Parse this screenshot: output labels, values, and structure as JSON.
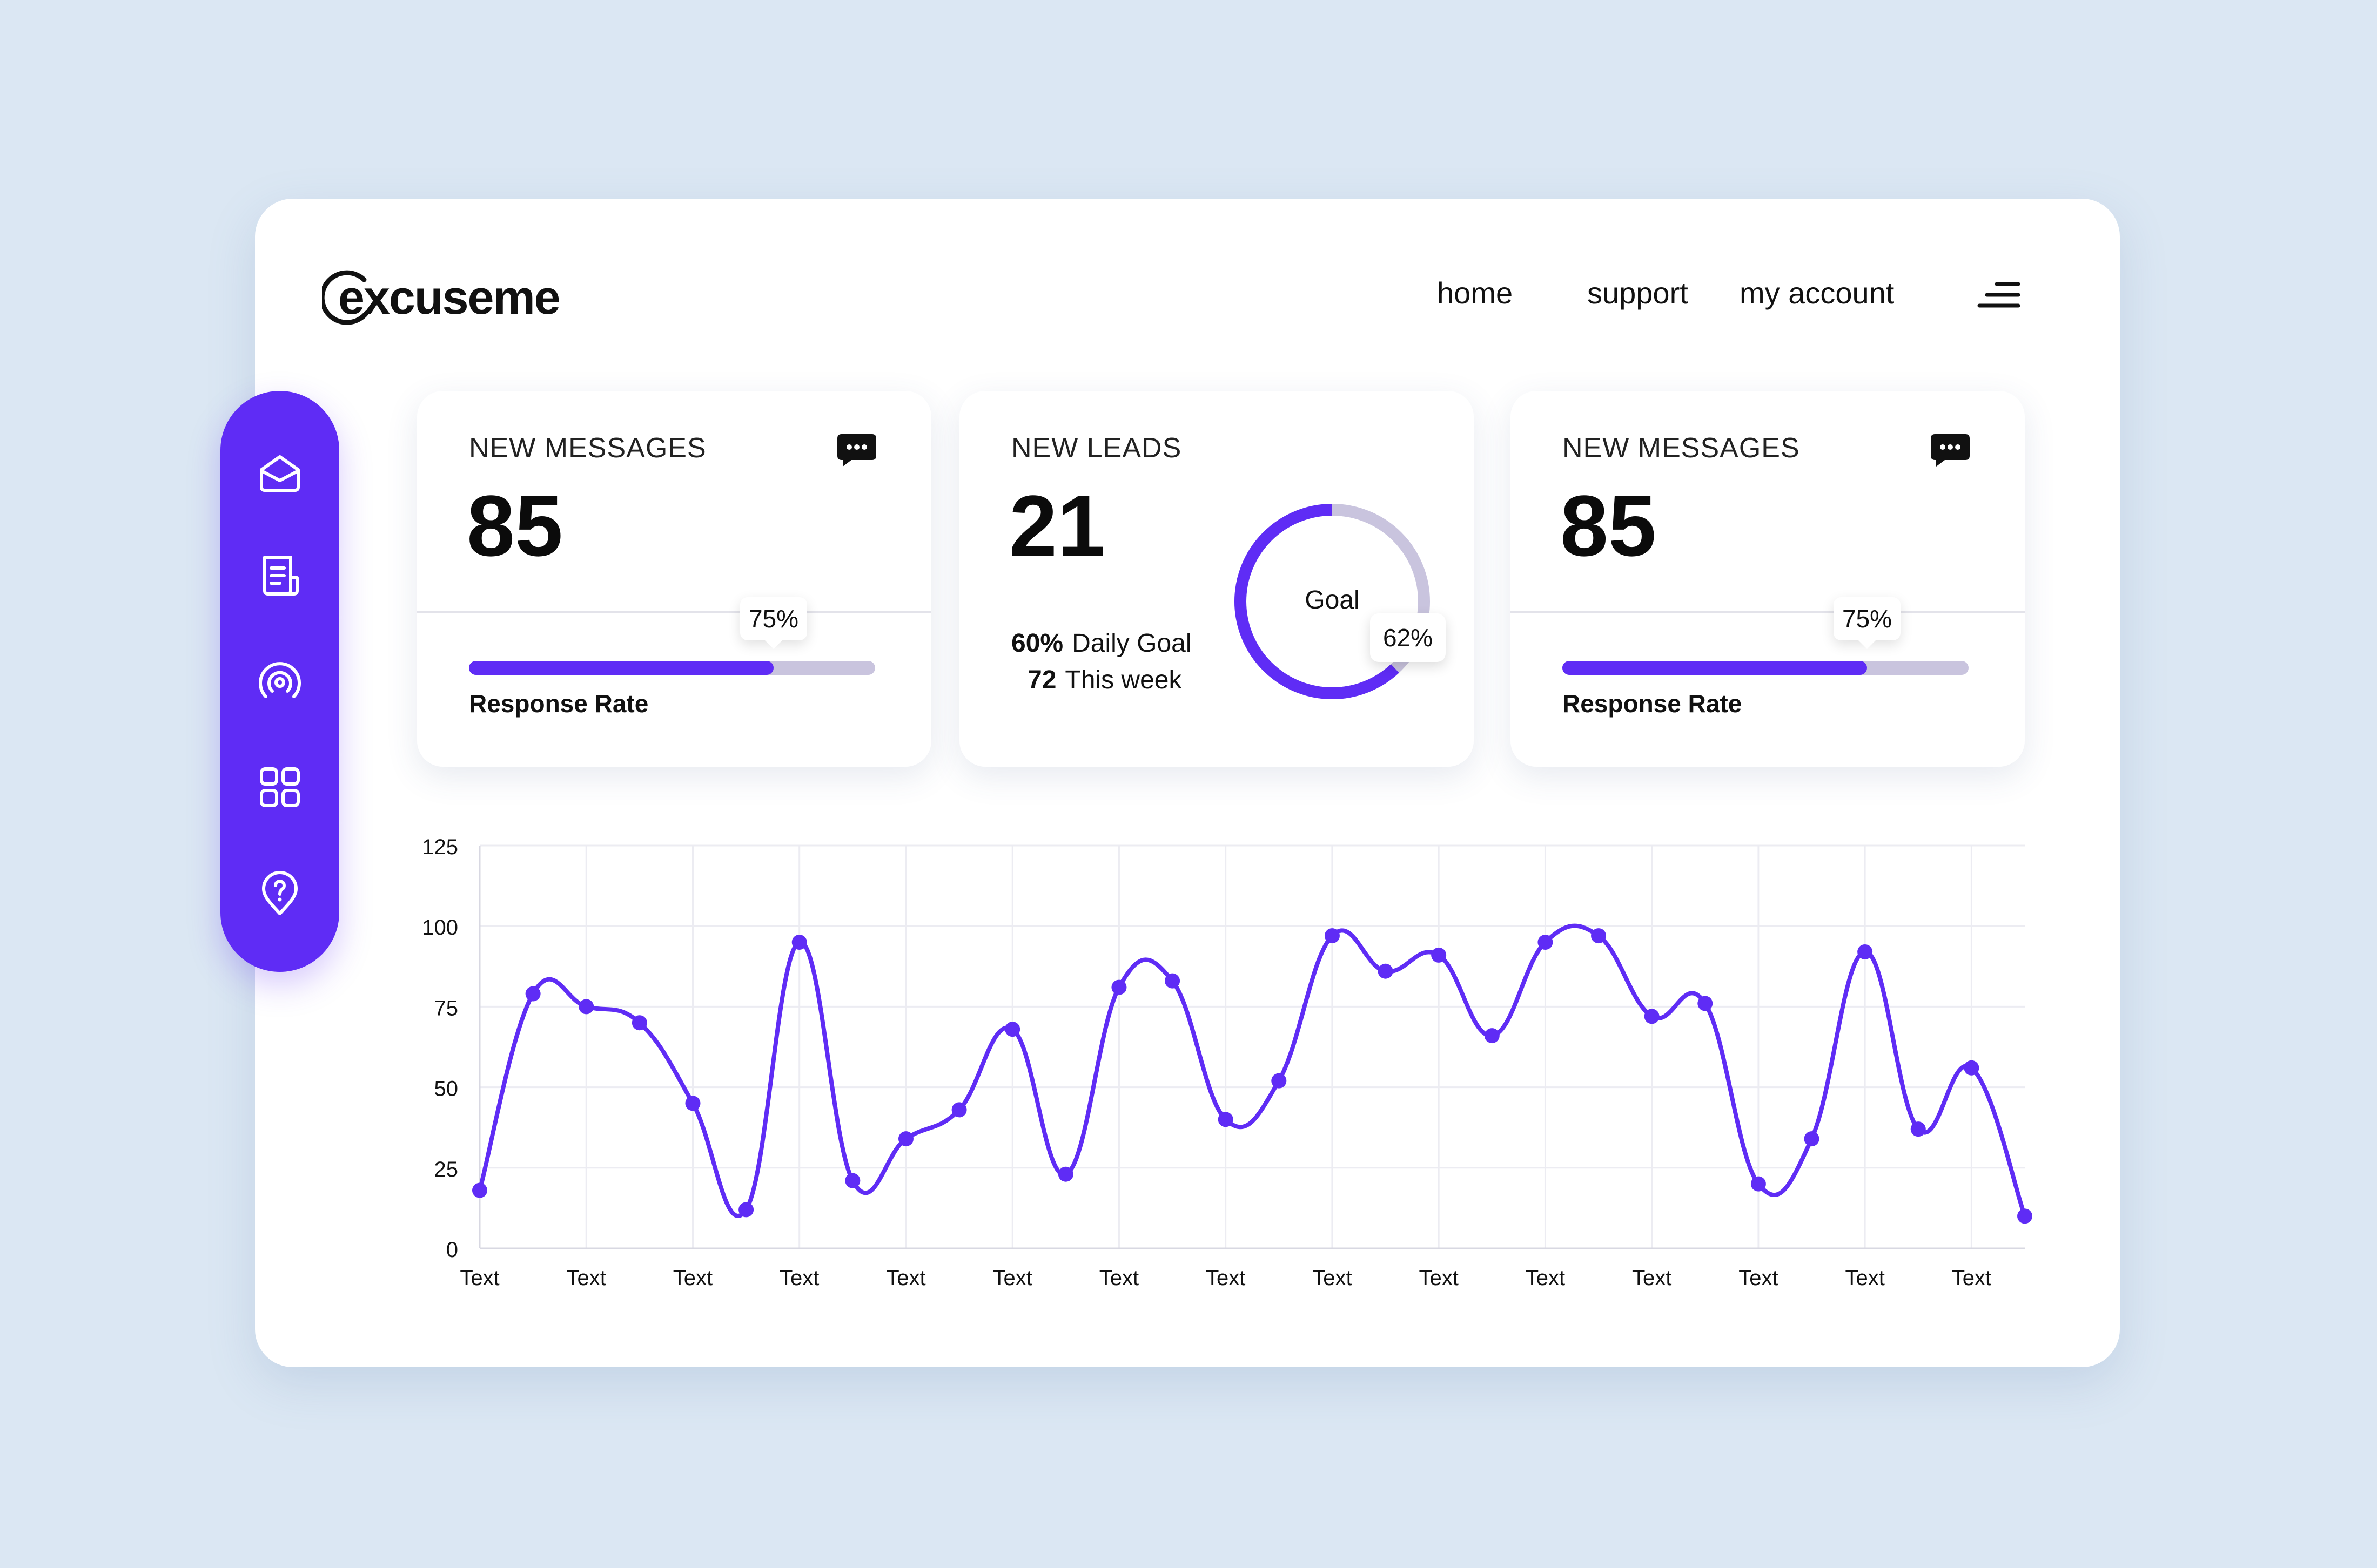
{
  "logo": {
    "text": "excuseme"
  },
  "nav": {
    "home": "home",
    "support": "support",
    "account": "my account"
  },
  "cards": [
    {
      "label": "NEW MESSAGES",
      "value": "85",
      "progress_label": "75%",
      "progress": 0.75,
      "caption": "Response Rate"
    },
    {
      "label": "NEW LEADS",
      "value": "21",
      "daily_goal_pct": "60%",
      "daily_goal_text": "Daily Goal",
      "week_count": "72",
      "week_text": "This week",
      "goal_label": "Goal",
      "goal_pct_label": "62%",
      "goal_progress": 0.62
    },
    {
      "label": "NEW MESSAGES",
      "value": "85",
      "progress_label": "75%",
      "progress": 0.75,
      "caption": "Response Rate"
    }
  ],
  "colors": {
    "accent": "#5f2cf5",
    "track": "#c9c4de",
    "background": "#dbe7f3"
  },
  "icons": [
    "mail-open-icon",
    "clipboard-icon",
    "broadcast-icon",
    "grid-icon",
    "location-help-icon",
    "chat-icon",
    "menu-icon"
  ],
  "chart_data": {
    "type": "line",
    "ylim": [
      0,
      125
    ],
    "yticks": [
      0,
      25,
      50,
      75,
      100,
      125
    ],
    "xticks": [
      "Text",
      "Text",
      "Text",
      "Text",
      "Text",
      "Text",
      "Text",
      "Text",
      "Text",
      "Text",
      "Text",
      "Text",
      "Text",
      "Text",
      "Text"
    ],
    "grid": true,
    "series": [
      {
        "values": [
          18,
          79,
          75,
          70,
          45,
          12,
          95,
          21,
          34,
          43,
          68,
          23,
          81,
          83,
          40,
          52,
          97,
          86,
          91,
          66,
          95,
          97,
          72,
          76,
          20,
          34,
          92,
          37,
          56,
          10
        ]
      }
    ]
  }
}
